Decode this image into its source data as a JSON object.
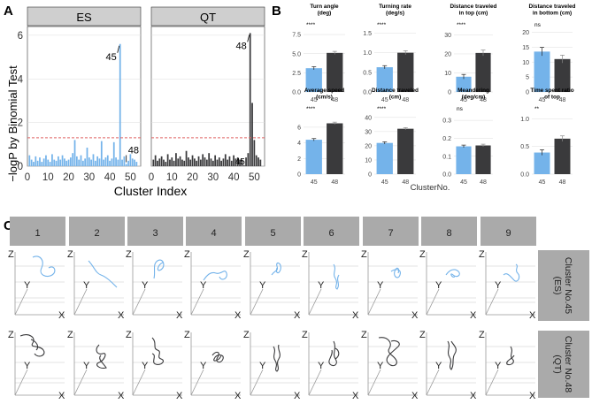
{
  "colors": {
    "es": "#74b3ea",
    "qt": "#3a3a3c",
    "strip": "#cfcfcf",
    "stripC": "#aaaaaa",
    "threshold": "#e06666",
    "grid": "#dddddd"
  },
  "panel_labels": {
    "a": "A",
    "b": "B",
    "c": "C"
  },
  "chart_data": [
    {
      "id": "A",
      "type": "bar",
      "title": "",
      "xlabel": "Cluster Index",
      "ylabel": "−logP by Binomial Test",
      "facets": [
        "ES",
        "QT"
      ],
      "xlim": [
        0,
        55
      ],
      "ylim": [
        0,
        6.4
      ],
      "yticks": [
        0,
        2,
        4,
        6
      ],
      "xticks": [
        0,
        10,
        20,
        30,
        40,
        50
      ],
      "threshold_y": 1.3,
      "series": [
        {
          "name": "ES",
          "x": [
            1,
            2,
            3,
            4,
            5,
            6,
            7,
            8,
            9,
            10,
            11,
            12,
            13,
            14,
            15,
            16,
            17,
            18,
            19,
            20,
            21,
            22,
            23,
            24,
            25,
            26,
            27,
            28,
            29,
            30,
            31,
            32,
            33,
            34,
            35,
            36,
            37,
            38,
            39,
            40,
            41,
            42,
            43,
            44,
            45,
            46,
            47,
            48,
            49,
            50,
            51,
            52,
            53
          ],
          "values": [
            0.5,
            0.3,
            0.2,
            0.45,
            0.25,
            0.4,
            0.2,
            0.35,
            0.5,
            0.3,
            0.2,
            0.55,
            0.3,
            0.25,
            0.45,
            0.3,
            0.5,
            0.35,
            0.25,
            0.3,
            0.4,
            0.6,
            1.2,
            0.45,
            0.3,
            0.5,
            0.25,
            0.35,
            0.85,
            0.4,
            0.3,
            0.55,
            0.25,
            0.45,
            0.35,
            1.15,
            0.3,
            0.4,
            0.5,
            0.25,
            0.35,
            1.1,
            0.4,
            0.3,
            5.6,
            0.3,
            0.45,
            0.1,
            0.25,
            0.55,
            0.35,
            0.3,
            0.2
          ]
        },
        {
          "name": "QT",
          "x": [
            1,
            2,
            3,
            4,
            5,
            6,
            7,
            8,
            9,
            10,
            11,
            12,
            13,
            14,
            15,
            16,
            17,
            18,
            19,
            20,
            21,
            22,
            23,
            24,
            25,
            26,
            27,
            28,
            29,
            30,
            31,
            32,
            33,
            34,
            35,
            36,
            37,
            38,
            39,
            40,
            41,
            42,
            43,
            44,
            45,
            46,
            47,
            48,
            49,
            50,
            51,
            52,
            53
          ],
          "values": [
            0.3,
            0.5,
            0.25,
            0.35,
            0.45,
            0.3,
            0.2,
            0.55,
            0.3,
            0.4,
            0.25,
            0.6,
            0.35,
            0.45,
            0.3,
            0.25,
            0.7,
            0.4,
            0.3,
            0.5,
            0.35,
            0.25,
            0.45,
            0.3,
            0.55,
            0.4,
            0.3,
            0.6,
            0.35,
            0.25,
            0.5,
            0.3,
            0.4,
            0.25,
            0.35,
            0.55,
            0.3,
            0.45,
            0.25,
            0.5,
            0.35,
            0.4,
            0.3,
            0.3,
            0.05,
            0.4,
            0.6,
            6.1,
            2.9,
            1.2,
            0.5,
            0.4,
            0.3
          ]
        }
      ],
      "annotations": [
        {
          "facet": "ES",
          "label": "45",
          "x": 45,
          "y": 5.6
        },
        {
          "facet": "ES",
          "label": "48",
          "x": 48,
          "y": 0.1
        },
        {
          "facet": "QT",
          "label": "48",
          "x": 48,
          "y": 6.1
        },
        {
          "facet": "QT",
          "label": "45",
          "x": 45,
          "y": 0.05
        }
      ]
    },
    {
      "id": "B",
      "type": "bar",
      "xlabel": "ClusterNo.",
      "categories": [
        "45",
        "48"
      ],
      "panels": [
        {
          "title": "Turn angle\n(deg)",
          "sig": "****",
          "values": [
            3.1,
            5.1
          ],
          "errors": [
            0.2,
            0.2
          ],
          "ylim": [
            0,
            8.2
          ],
          "yticks": [
            0,
            2.5,
            5.0,
            7.5
          ],
          "ticklabels": [
            "0.0",
            "2.5",
            "5.0",
            "7.5"
          ]
        },
        {
          "title": "Turning rate\n(deg/s)",
          "sig": "****",
          "values": [
            0.63,
            1.0
          ],
          "errors": [
            0.04,
            0.05
          ],
          "ylim": [
            0,
            1.6
          ],
          "yticks": [
            0,
            0.5,
            1.0,
            1.5
          ],
          "ticklabels": [
            "0.0",
            "0.5",
            "1.0",
            "1.5"
          ]
        },
        {
          "title": "Distance traveled\nin top (cm)",
          "sig": "****",
          "values": [
            8,
            20.5
          ],
          "errors": [
            1.2,
            1.5
          ],
          "ylim": [
            0,
            33
          ],
          "yticks": [
            0,
            10,
            20,
            30
          ],
          "ticklabels": [
            "0",
            "10",
            "20",
            "30"
          ]
        },
        {
          "title": "Distance traveled\nin bottom (cm)",
          "sig": "ns",
          "values": [
            13.5,
            11
          ],
          "errors": [
            1.4,
            1.3
          ],
          "ylim": [
            0,
            21
          ],
          "yticks": [
            0,
            5,
            10,
            15,
            20
          ],
          "ticklabels": [
            "0",
            "5",
            "10",
            "15",
            "20"
          ]
        },
        {
          "title": "Average speed\n(cm/s)",
          "sig": "****",
          "values": [
            4.4,
            6.5
          ],
          "errors": [
            0.15,
            0.15
          ],
          "ylim": [
            0,
            7.8
          ],
          "yticks": [
            0,
            2,
            4,
            6
          ],
          "ticklabels": [
            "0",
            "2",
            "4",
            "6"
          ]
        },
        {
          "title": "Distance traveled\n(cm)",
          "sig": "****",
          "values": [
            22,
            32
          ],
          "errors": [
            0.8,
            0.8
          ],
          "ylim": [
            0,
            43
          ],
          "yticks": [
            0,
            10,
            20,
            30,
            40
          ],
          "ticklabels": [
            "0",
            "10",
            "20",
            "30",
            "40"
          ]
        },
        {
          "title": "Meandering\n(deg/cm)",
          "sig": "ns",
          "values": [
            0.155,
            0.16
          ],
          "errors": [
            0.007,
            0.007
          ],
          "ylim": [
            0,
            0.34
          ],
          "yticks": [
            0,
            0.1,
            0.2,
            0.3
          ],
          "ticklabels": [
            "0.0",
            "0.1",
            "0.2",
            "0.3"
          ]
        },
        {
          "title": "Time spent ratio\nof top",
          "sig": "**",
          "values": [
            0.39,
            0.64
          ],
          "errors": [
            0.05,
            0.05
          ],
          "ylim": [
            0,
            1.1
          ],
          "yticks": [
            0,
            0.5,
            1.0
          ],
          "ticklabels": [
            "0.0",
            "0.5",
            "1.0"
          ]
        }
      ]
    }
  ],
  "panel_c": {
    "columns": [
      "1",
      "2",
      "3",
      "4",
      "5",
      "6",
      "7",
      "8",
      "9"
    ],
    "rows": [
      {
        "label": "Cluster No.45\n(ES)",
        "color_key": "es"
      },
      {
        "label": "Cluster No.48\n(QT)",
        "color_key": "qt"
      }
    ],
    "axis_labels": {
      "z": "Z",
      "y": "Y",
      "x": "X"
    }
  }
}
